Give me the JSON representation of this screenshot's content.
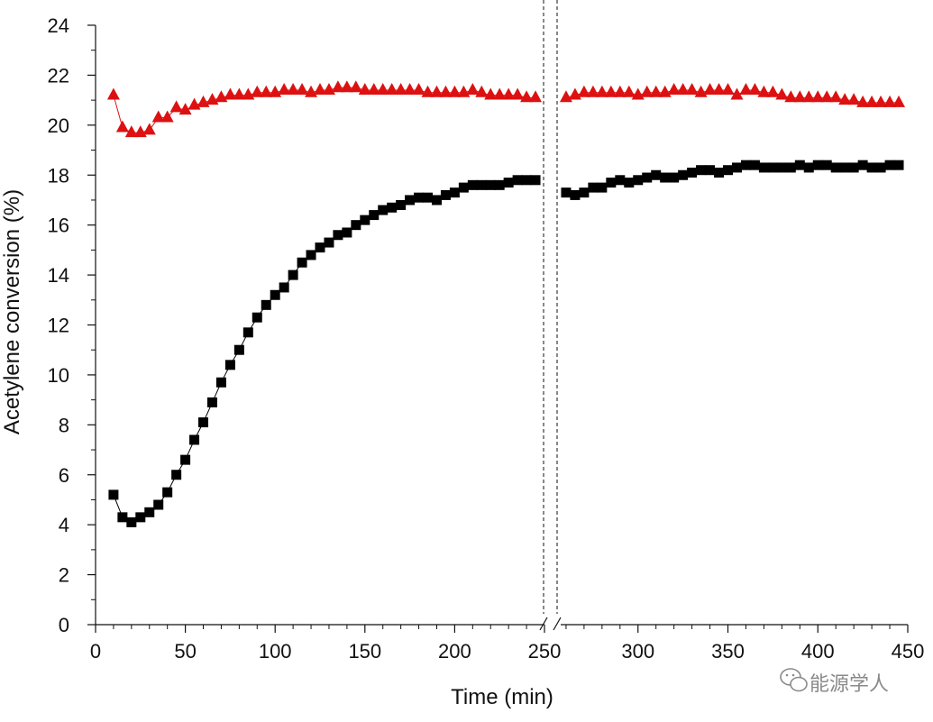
{
  "chart_data": {
    "type": "scatter",
    "title": "",
    "xlabel": "Time (min)",
    "ylabel": "Acetylene conversion (%)",
    "xlim": [
      0,
      450
    ],
    "ylim": [
      0,
      24
    ],
    "axis_break": {
      "between": [
        250,
        260
      ],
      "style": "double dashed vertical lines with slash marks on x-axis"
    },
    "x_ticks": [
      "0",
      "50",
      "100",
      "150",
      "200",
      "250",
      "300",
      "350",
      "400",
      "450"
    ],
    "y_ticks": [
      "0",
      "2",
      "4",
      "6",
      "8",
      "10",
      "12",
      "14",
      "16",
      "18",
      "20",
      "22",
      "24"
    ],
    "grid": false,
    "legend": "none",
    "series": [
      {
        "marker": "triangle",
        "color": "#dd1111",
        "points": [
          [
            10,
            21.2
          ],
          [
            15,
            19.9
          ],
          [
            20,
            19.7
          ],
          [
            25,
            19.7
          ],
          [
            30,
            19.8
          ],
          [
            35,
            20.3
          ],
          [
            40,
            20.3
          ],
          [
            45,
            20.7
          ],
          [
            50,
            20.6
          ],
          [
            55,
            20.8
          ],
          [
            60,
            20.9
          ],
          [
            65,
            21.0
          ],
          [
            70,
            21.1
          ],
          [
            75,
            21.2
          ],
          [
            80,
            21.2
          ],
          [
            85,
            21.2
          ],
          [
            90,
            21.3
          ],
          [
            95,
            21.3
          ],
          [
            100,
            21.3
          ],
          [
            105,
            21.4
          ],
          [
            110,
            21.4
          ],
          [
            115,
            21.4
          ],
          [
            120,
            21.3
          ],
          [
            125,
            21.4
          ],
          [
            130,
            21.4
          ],
          [
            135,
            21.5
          ],
          [
            140,
            21.5
          ],
          [
            145,
            21.5
          ],
          [
            150,
            21.4
          ],
          [
            155,
            21.4
          ],
          [
            160,
            21.4
          ],
          [
            165,
            21.4
          ],
          [
            170,
            21.4
          ],
          [
            175,
            21.4
          ],
          [
            180,
            21.4
          ],
          [
            185,
            21.3
          ],
          [
            190,
            21.3
          ],
          [
            195,
            21.3
          ],
          [
            200,
            21.3
          ],
          [
            205,
            21.3
          ],
          [
            210,
            21.4
          ],
          [
            215,
            21.3
          ],
          [
            220,
            21.2
          ],
          [
            225,
            21.2
          ],
          [
            230,
            21.2
          ],
          [
            235,
            21.2
          ],
          [
            240,
            21.1
          ],
          [
            245,
            21.1
          ],
          [
            260,
            21.1
          ],
          [
            265,
            21.2
          ],
          [
            270,
            21.3
          ],
          [
            275,
            21.3
          ],
          [
            280,
            21.3
          ],
          [
            285,
            21.3
          ],
          [
            290,
            21.3
          ],
          [
            295,
            21.3
          ],
          [
            300,
            21.2
          ],
          [
            305,
            21.3
          ],
          [
            310,
            21.3
          ],
          [
            315,
            21.3
          ],
          [
            320,
            21.4
          ],
          [
            325,
            21.4
          ],
          [
            330,
            21.4
          ],
          [
            335,
            21.3
          ],
          [
            340,
            21.4
          ],
          [
            345,
            21.4
          ],
          [
            350,
            21.4
          ],
          [
            355,
            21.2
          ],
          [
            360,
            21.4
          ],
          [
            365,
            21.4
          ],
          [
            370,
            21.3
          ],
          [
            375,
            21.3
          ],
          [
            380,
            21.2
          ],
          [
            385,
            21.1
          ],
          [
            390,
            21.1
          ],
          [
            395,
            21.1
          ],
          [
            400,
            21.1
          ],
          [
            405,
            21.1
          ],
          [
            410,
            21.1
          ],
          [
            415,
            21.0
          ],
          [
            420,
            21.0
          ],
          [
            425,
            20.9
          ],
          [
            430,
            20.9
          ],
          [
            435,
            20.9
          ],
          [
            440,
            20.9
          ],
          [
            445,
            20.9
          ]
        ]
      },
      {
        "marker": "square",
        "color": "#000000",
        "points": [
          [
            10,
            5.2
          ],
          [
            15,
            4.3
          ],
          [
            20,
            4.1
          ],
          [
            25,
            4.3
          ],
          [
            30,
            4.5
          ],
          [
            35,
            4.8
          ],
          [
            40,
            5.3
          ],
          [
            45,
            6.0
          ],
          [
            50,
            6.6
          ],
          [
            55,
            7.4
          ],
          [
            60,
            8.1
          ],
          [
            65,
            8.9
          ],
          [
            70,
            9.7
          ],
          [
            75,
            10.4
          ],
          [
            80,
            11.0
          ],
          [
            85,
            11.7
          ],
          [
            90,
            12.3
          ],
          [
            95,
            12.8
          ],
          [
            100,
            13.2
          ],
          [
            105,
            13.5
          ],
          [
            110,
            14.0
          ],
          [
            115,
            14.5
          ],
          [
            120,
            14.8
          ],
          [
            125,
            15.1
          ],
          [
            130,
            15.3
          ],
          [
            135,
            15.6
          ],
          [
            140,
            15.7
          ],
          [
            145,
            16.0
          ],
          [
            150,
            16.2
          ],
          [
            155,
            16.4
          ],
          [
            160,
            16.6
          ],
          [
            165,
            16.7
          ],
          [
            170,
            16.8
          ],
          [
            175,
            17.0
          ],
          [
            180,
            17.1
          ],
          [
            185,
            17.1
          ],
          [
            190,
            17.0
          ],
          [
            195,
            17.2
          ],
          [
            200,
            17.3
          ],
          [
            205,
            17.5
          ],
          [
            210,
            17.6
          ],
          [
            215,
            17.6
          ],
          [
            220,
            17.6
          ],
          [
            225,
            17.6
          ],
          [
            230,
            17.7
          ],
          [
            235,
            17.8
          ],
          [
            240,
            17.8
          ],
          [
            245,
            17.8
          ],
          [
            260,
            17.3
          ],
          [
            265,
            17.2
          ],
          [
            270,
            17.3
          ],
          [
            275,
            17.5
          ],
          [
            280,
            17.5
          ],
          [
            285,
            17.7
          ],
          [
            290,
            17.8
          ],
          [
            295,
            17.7
          ],
          [
            300,
            17.8
          ],
          [
            305,
            17.9
          ],
          [
            310,
            18.0
          ],
          [
            315,
            17.9
          ],
          [
            320,
            17.9
          ],
          [
            325,
            18.0
          ],
          [
            330,
            18.1
          ],
          [
            335,
            18.2
          ],
          [
            340,
            18.2
          ],
          [
            345,
            18.1
          ],
          [
            350,
            18.2
          ],
          [
            355,
            18.3
          ],
          [
            360,
            18.4
          ],
          [
            365,
            18.4
          ],
          [
            370,
            18.3
          ],
          [
            375,
            18.3
          ],
          [
            380,
            18.3
          ],
          [
            385,
            18.3
          ],
          [
            390,
            18.4
          ],
          [
            395,
            18.3
          ],
          [
            400,
            18.4
          ],
          [
            405,
            18.4
          ],
          [
            410,
            18.3
          ],
          [
            415,
            18.3
          ],
          [
            420,
            18.3
          ],
          [
            425,
            18.4
          ],
          [
            430,
            18.3
          ],
          [
            435,
            18.3
          ],
          [
            440,
            18.4
          ],
          [
            445,
            18.4
          ]
        ]
      }
    ]
  },
  "watermark": {
    "icon": "wechat-icon",
    "text": "能源学人"
  }
}
